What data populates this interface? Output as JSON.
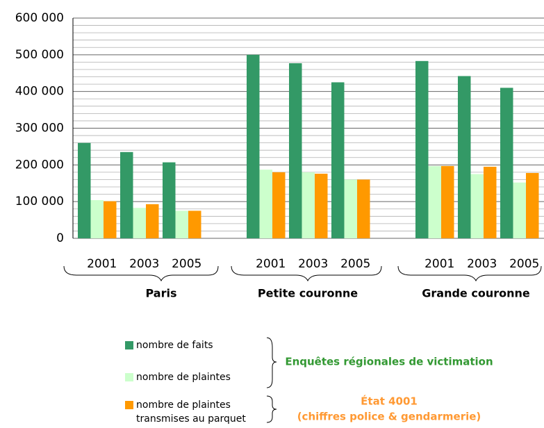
{
  "chart_data": {
    "type": "bar",
    "categories": [
      "2001",
      "2003",
      "2005",
      "2001",
      "2003",
      "2005",
      "2001",
      "2003",
      "2005"
    ],
    "groups": [
      "Paris",
      "Petite couronne",
      "Grande couronne"
    ],
    "series": [
      {
        "name": "nombre de faits",
        "color": "#339966",
        "values": [
          260000,
          235000,
          207000,
          500000,
          477000,
          425000,
          483000,
          442000,
          410000
        ]
      },
      {
        "name": "nombre de plaintes",
        "color": "#ccffcc",
        "values": [
          104000,
          83000,
          75000,
          187000,
          180000,
          160000,
          197000,
          175000,
          152000
        ]
      },
      {
        "name": "nombre de plaintes transmises au parquet",
        "color": "#ff9900",
        "values": [
          101000,
          93000,
          75000,
          180000,
          176000,
          160000,
          197000,
          195000,
          178000
        ]
      }
    ],
    "ylim": [
      0,
      600000
    ],
    "yticks": [
      0,
      {
        "value": 100000,
        "label": "100 000"
      },
      {
        "value": 200000,
        "label": "200 000"
      },
      {
        "value": 300000,
        "label": "300 000"
      },
      {
        "value": 400000,
        "label": "400 000"
      },
      {
        "value": 500000,
        "label": "500 000"
      },
      {
        "value": 600000,
        "label": "600 000"
      }
    ],
    "minor_yticks": [
      20000,
      40000,
      60000,
      80000,
      120000,
      140000,
      160000,
      180000,
      220000,
      240000,
      260000,
      280000,
      320000,
      340000,
      360000,
      380000,
      420000,
      440000,
      460000,
      480000,
      520000,
      540000,
      560000,
      580000
    ],
    "grid": true,
    "annotations": [
      {
        "text": "Enquêtes régionales de victimation",
        "color": "#339933"
      },
      {
        "text": "État 4001",
        "color": "#ff9933"
      },
      {
        "text": "(chiffres police & gendarmerie)",
        "color": "#ff9933"
      }
    ]
  }
}
